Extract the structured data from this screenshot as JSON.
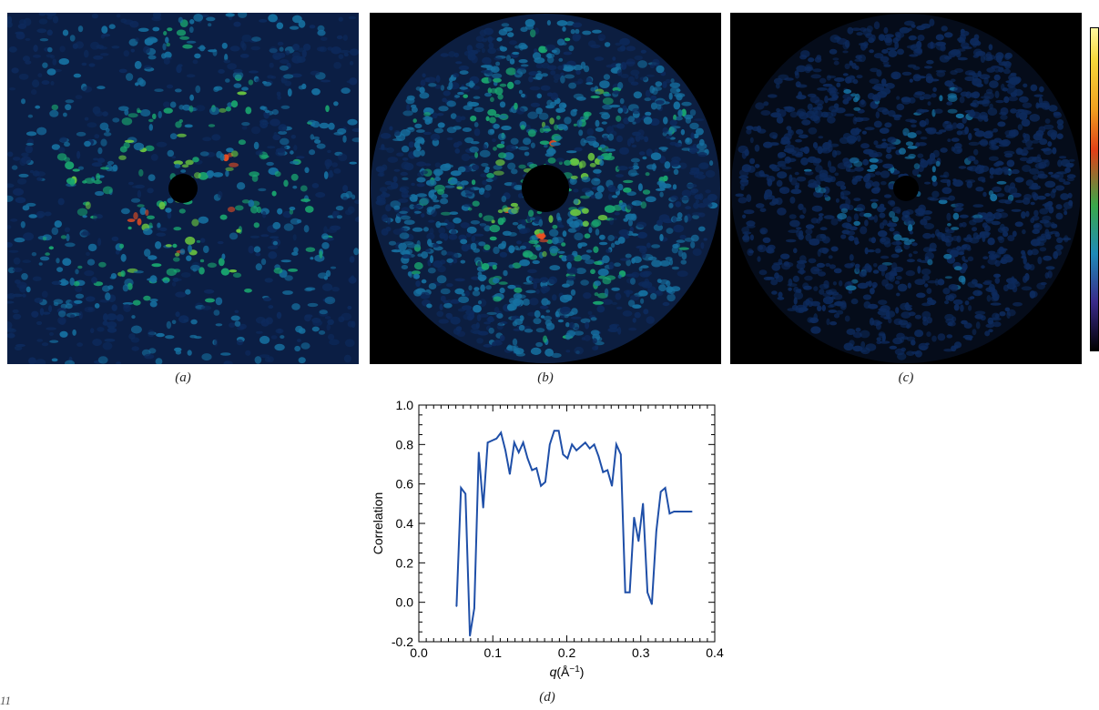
{
  "figure_label": "11",
  "panels": [
    {
      "caption": "(a)",
      "name": "a"
    },
    {
      "caption": "(b)",
      "name": "b"
    },
    {
      "caption": "(c)",
      "name": "c"
    }
  ],
  "colors": {
    "line": "#1f4fa8",
    "heat_low": "#0a1a3a",
    "heat_mid": "#1aa870",
    "heat_high": "#f05020"
  },
  "chart_data": {
    "type": "line",
    "caption": "(d)",
    "ylabel": "Correlation",
    "xlabel_italic": "q",
    "xlabel_rest": "(Å",
    "xlabel_sup": "−1",
    "xlabel_close": ")",
    "xlim": [
      0.0,
      0.4
    ],
    "ylim": [
      -0.2,
      1.0
    ],
    "xticks": [
      "0.0",
      "0.1",
      "0.2",
      "0.3",
      "0.4"
    ],
    "yticks": [
      "-0.2",
      "0.0",
      "0.2",
      "0.4",
      "0.6",
      "0.8",
      "1.0"
    ],
    "grid": false,
    "x": [
      0.051,
      0.057,
      0.063,
      0.069,
      0.075,
      0.081,
      0.087,
      0.093,
      0.099,
      0.105,
      0.111,
      0.117,
      0.123,
      0.129,
      0.135,
      0.141,
      0.147,
      0.153,
      0.159,
      0.165,
      0.171,
      0.177,
      0.183,
      0.189,
      0.195,
      0.201,
      0.207,
      0.213,
      0.219,
      0.225,
      0.231,
      0.237,
      0.243,
      0.249,
      0.255,
      0.261,
      0.267,
      0.273,
      0.279,
      0.285,
      0.291,
      0.297,
      0.303,
      0.309,
      0.315,
      0.321,
      0.327,
      0.333,
      0.339,
      0.345,
      0.351,
      0.357,
      0.363,
      0.369
    ],
    "values": [
      -0.02,
      0.58,
      0.55,
      -0.17,
      -0.03,
      0.76,
      0.48,
      0.81,
      0.82,
      0.83,
      0.86,
      0.77,
      0.65,
      0.81,
      0.76,
      0.81,
      0.73,
      0.67,
      0.68,
      0.59,
      0.61,
      0.8,
      0.87,
      0.87,
      0.75,
      0.73,
      0.8,
      0.77,
      0.79,
      0.81,
      0.78,
      0.8,
      0.74,
      0.66,
      0.67,
      0.59,
      0.8,
      0.75,
      0.05,
      0.05,
      0.43,
      0.31,
      0.5,
      0.05,
      -0.01,
      0.36,
      0.56,
      0.58,
      0.45,
      0.46,
      0.46,
      0.46,
      0.46,
      0.46
    ]
  }
}
